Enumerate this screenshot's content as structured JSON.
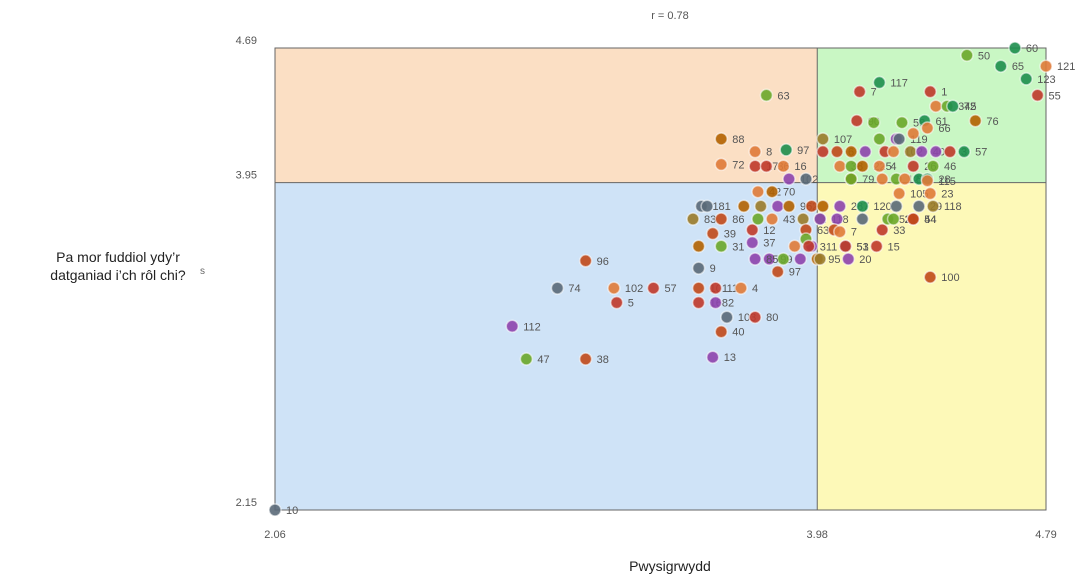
{
  "header": {
    "correlation": "r = 0.78"
  },
  "axes": {
    "ylabel_line1": "Pa mor fuddiol ydy’r",
    "ylabel_line2": "datganiad i’ch rôl chi?",
    "ylabel_unit": "s",
    "xlabel": "Pwysigrwydd"
  },
  "chart_data": {
    "type": "scatter",
    "xlim": [
      2.06,
      4.79
    ],
    "ylim": [
      2.15,
      4.69
    ],
    "x_ticks": [
      "2.06",
      "3.98",
      "4.79"
    ],
    "y_ticks": [
      "2.15",
      "3.95",
      "4.69"
    ],
    "threshold_x": 3.98,
    "threshold_y": 3.95,
    "quadrant_colors": {
      "top_left": "#fbdfc4",
      "top_right": "#c9f7c4",
      "bottom_left": "#cfe3f7",
      "bottom_right": "#fdf9b8"
    },
    "point_colors": [
      "#c0392b",
      "#1e8f4e",
      "#6ba82a",
      "#e07b39",
      "#b36200",
      "#8e44ad",
      "#5a6a78",
      "#c14a1a",
      "#9a7b2a"
    ],
    "points": [
      {
        "label": "10",
        "x": 2.06,
        "y": 2.15,
        "c": 6
      },
      {
        "label": "47",
        "x": 2.95,
        "y": 2.98,
        "c": 2
      },
      {
        "label": "38",
        "x": 3.16,
        "y": 2.98,
        "c": 7
      },
      {
        "label": "112",
        "x": 2.9,
        "y": 3.16,
        "c": 5
      },
      {
        "label": "74",
        "x": 3.06,
        "y": 3.37,
        "c": 6
      },
      {
        "label": "102",
        "x": 3.26,
        "y": 3.37,
        "c": 3
      },
      {
        "label": "57",
        "x": 3.4,
        "y": 3.37,
        "c": 0
      },
      {
        "label": "5",
        "x": 3.27,
        "y": 3.29,
        "c": 0
      },
      {
        "label": "96",
        "x": 3.16,
        "y": 3.52,
        "c": 7
      },
      {
        "label": "101",
        "x": 3.56,
        "y": 3.37,
        "c": 7
      },
      {
        "label": "11",
        "x": 3.62,
        "y": 3.37,
        "c": 0
      },
      {
        "label": "4",
        "x": 3.71,
        "y": 3.37,
        "c": 3
      },
      {
        "label": "1682",
        "x": 3.56,
        "y": 3.29,
        "c": 0
      },
      {
        "label": "",
        "x": 3.62,
        "y": 3.29,
        "c": 5
      },
      {
        "label": "103",
        "x": 3.66,
        "y": 3.21,
        "c": 6
      },
      {
        "label": "80",
        "x": 3.76,
        "y": 3.21,
        "c": 0
      },
      {
        "label": "40",
        "x": 3.64,
        "y": 3.13,
        "c": 7
      },
      {
        "label": "13",
        "x": 3.61,
        "y": 2.99,
        "c": 5
      },
      {
        "label": "9",
        "x": 3.56,
        "y": 3.48,
        "c": 6
      },
      {
        "label": "99",
        "x": 3.81,
        "y": 3.53,
        "c": 5
      },
      {
        "label": "",
        "x": 3.86,
        "y": 3.53,
        "c": 2
      },
      {
        "label": "85",
        "x": 3.76,
        "y": 3.53,
        "c": 5
      },
      {
        "label": "97",
        "x": 3.84,
        "y": 3.46,
        "c": 7
      },
      {
        "label": "",
        "x": 3.92,
        "y": 3.53,
        "c": 5
      },
      {
        "label": "95",
        "x": 3.98,
        "y": 3.53,
        "c": 4
      },
      {
        "label": "",
        "x": 3.99,
        "y": 3.53,
        "c": 8
      },
      {
        "label": "20",
        "x": 4.09,
        "y": 3.53,
        "c": 5
      },
      {
        "label": "37",
        "x": 3.75,
        "y": 3.62,
        "c": 5
      },
      {
        "label": "31",
        "x": 3.64,
        "y": 3.6,
        "c": 2
      },
      {
        "label": "",
        "x": 3.56,
        "y": 3.6,
        "c": 4
      },
      {
        "label": "39",
        "x": 3.61,
        "y": 3.67,
        "c": 7
      },
      {
        "label": "12",
        "x": 3.75,
        "y": 3.69,
        "c": 0
      },
      {
        "label": "83",
        "x": 3.54,
        "y": 3.75,
        "c": 8
      },
      {
        "label": "86",
        "x": 3.64,
        "y": 3.75,
        "c": 7
      },
      {
        "label": "",
        "x": 3.77,
        "y": 3.75,
        "c": 2
      },
      {
        "label": "43",
        "x": 3.82,
        "y": 3.75,
        "c": 3
      },
      {
        "label": "",
        "x": 3.9,
        "y": 3.6,
        "c": 3
      },
      {
        "label": "",
        "x": 3.96,
        "y": 3.6,
        "c": 5
      },
      {
        "label": "71",
        "x": 3.93,
        "y": 3.75,
        "c": 8
      },
      {
        "label": "",
        "x": 3.99,
        "y": 3.75,
        "c": 2
      },
      {
        "label": "118",
        "x": 3.99,
        "y": 3.75,
        "c": 5
      },
      {
        "label": "",
        "x": 4.05,
        "y": 3.75,
        "c": 5
      },
      {
        "label": "63",
        "x": 3.94,
        "y": 3.69,
        "c": 7
      },
      {
        "label": "",
        "x": 3.94,
        "y": 3.64,
        "c": 2
      },
      {
        "label": "311",
        "x": 3.95,
        "y": 3.6,
        "c": 0
      },
      {
        "label": "",
        "x": 4.04,
        "y": 3.69,
        "c": 7
      },
      {
        "label": "7",
        "x": 4.06,
        "y": 3.68,
        "c": 3
      },
      {
        "label": "53",
        "x": 4.08,
        "y": 3.6,
        "c": 6
      },
      {
        "label": "51",
        "x": 4.08,
        "y": 3.6,
        "c": 0
      },
      {
        "label": "15",
        "x": 4.19,
        "y": 3.6,
        "c": 0
      },
      {
        "label": "33",
        "x": 4.21,
        "y": 3.69,
        "c": 0
      },
      {
        "label": "",
        "x": 4.14,
        "y": 3.75,
        "c": 6
      },
      {
        "label": "52",
        "x": 4.23,
        "y": 3.75,
        "c": 2
      },
      {
        "label": "21",
        "x": 4.25,
        "y": 3.75,
        "c": 2
      },
      {
        "label": "44",
        "x": 4.32,
        "y": 3.75,
        "c": 0
      },
      {
        "label": "54",
        "x": 4.32,
        "y": 3.75,
        "c": 7
      },
      {
        "label": "181",
        "x": 3.57,
        "y": 3.82,
        "c": 6
      },
      {
        "label": "",
        "x": 3.59,
        "y": 3.82,
        "c": 6
      },
      {
        "label": "",
        "x": 3.72,
        "y": 3.82,
        "c": 4
      },
      {
        "label": "",
        "x": 3.78,
        "y": 3.82,
        "c": 8
      },
      {
        "label": "",
        "x": 3.84,
        "y": 3.82,
        "c": 5
      },
      {
        "label": "962",
        "x": 3.88,
        "y": 3.82,
        "c": 4
      },
      {
        "label": "",
        "x": 3.96,
        "y": 3.82,
        "c": 7
      },
      {
        "label": "",
        "x": 4.0,
        "y": 3.82,
        "c": 4
      },
      {
        "label": "287",
        "x": 4.06,
        "y": 3.82,
        "c": 5
      },
      {
        "label": "120",
        "x": 4.14,
        "y": 3.82,
        "c": 1
      },
      {
        "label": "",
        "x": 4.26,
        "y": 3.82,
        "c": 6
      },
      {
        "label": "29",
        "x": 4.34,
        "y": 3.82,
        "c": 6
      },
      {
        "label": "118",
        "x": 4.39,
        "y": 3.82,
        "c": 8
      },
      {
        "label": "42",
        "x": 3.77,
        "y": 3.9,
        "c": 3
      },
      {
        "label": "70",
        "x": 3.82,
        "y": 3.9,
        "c": 4
      },
      {
        "label": "105",
        "x": 4.27,
        "y": 3.89,
        "c": 3
      },
      {
        "label": "23",
        "x": 4.38,
        "y": 3.89,
        "c": 3
      },
      {
        "label": "102",
        "x": 3.88,
        "y": 3.97,
        "c": 5
      },
      {
        "label": "",
        "x": 3.94,
        "y": 3.97,
        "c": 6
      },
      {
        "label": "79",
        "x": 4.1,
        "y": 3.97,
        "c": 4
      },
      {
        "label": "",
        "x": 4.1,
        "y": 3.97,
        "c": 2
      },
      {
        "label": "",
        "x": 4.21,
        "y": 3.97,
        "c": 3
      },
      {
        "label": "122",
        "x": 4.26,
        "y": 3.97,
        "c": 2
      },
      {
        "label": "64",
        "x": 4.29,
        "y": 3.97,
        "c": 3
      },
      {
        "label": "",
        "x": 4.34,
        "y": 3.97,
        "c": 1
      },
      {
        "label": "28",
        "x": 4.37,
        "y": 3.97,
        "c": 1
      },
      {
        "label": "115",
        "x": 4.37,
        "y": 3.96,
        "c": 3
      },
      {
        "label": "72",
        "x": 3.64,
        "y": 4.05,
        "c": 3
      },
      {
        "label": "17",
        "x": 3.76,
        "y": 4.04,
        "c": 0
      },
      {
        "label": "36",
        "x": 3.8,
        "y": 4.04,
        "c": 0
      },
      {
        "label": "16",
        "x": 3.86,
        "y": 4.04,
        "c": 3
      },
      {
        "label": "88",
        "x": 3.64,
        "y": 4.19,
        "c": 4
      },
      {
        "label": "8",
        "x": 3.76,
        "y": 4.12,
        "c": 3
      },
      {
        "label": "97",
        "x": 3.87,
        "y": 4.13,
        "c": 1
      },
      {
        "label": "63",
        "x": 3.8,
        "y": 4.43,
        "c": 2
      },
      {
        "label": "107",
        "x": 4.0,
        "y": 4.19,
        "c": 8
      },
      {
        "label": "",
        "x": 4.0,
        "y": 4.12,
        "c": 0
      },
      {
        "label": "6",
        "x": 4.05,
        "y": 4.12,
        "c": 7
      },
      {
        "label": "",
        "x": 4.1,
        "y": 4.12,
        "c": 4
      },
      {
        "label": "",
        "x": 4.15,
        "y": 4.12,
        "c": 5
      },
      {
        "label": "89",
        "x": 4.2,
        "y": 4.19,
        "c": 2
      },
      {
        "label": "",
        "x": 4.22,
        "y": 4.12,
        "c": 0
      },
      {
        "label": "102",
        "x": 4.25,
        "y": 4.12,
        "c": 3
      },
      {
        "label": "",
        "x": 4.26,
        "y": 4.19,
        "c": 5
      },
      {
        "label": "119",
        "x": 4.27,
        "y": 4.19,
        "c": 6
      },
      {
        "label": "",
        "x": 4.31,
        "y": 4.12,
        "c": 8
      },
      {
        "label": "40",
        "x": 4.35,
        "y": 4.12,
        "c": 5
      },
      {
        "label": "",
        "x": 4.4,
        "y": 4.12,
        "c": 5
      },
      {
        "label": "3",
        "x": 4.45,
        "y": 4.12,
        "c": 0
      },
      {
        "label": "57",
        "x": 4.5,
        "y": 4.12,
        "c": 1
      },
      {
        "label": "38",
        "x": 4.06,
        "y": 4.04,
        "c": 3
      },
      {
        "label": "",
        "x": 4.1,
        "y": 4.04,
        "c": 2
      },
      {
        "label": "225",
        "x": 4.14,
        "y": 4.04,
        "c": 4
      },
      {
        "label": "4",
        "x": 4.2,
        "y": 4.04,
        "c": 3
      },
      {
        "label": "26",
        "x": 4.32,
        "y": 4.04,
        "c": 0
      },
      {
        "label": "46",
        "x": 4.39,
        "y": 4.04,
        "c": 2
      },
      {
        "label": "90",
        "x": 4.12,
        "y": 4.29,
        "c": 0
      },
      {
        "label": "",
        "x": 4.18,
        "y": 4.28,
        "c": 2
      },
      {
        "label": "58",
        "x": 4.28,
        "y": 4.28,
        "c": 2
      },
      {
        "label": "61",
        "x": 4.36,
        "y": 4.29,
        "c": 1
      },
      {
        "label": "66",
        "x": 4.37,
        "y": 4.25,
        "c": 3
      },
      {
        "label": "",
        "x": 4.32,
        "y": 4.22,
        "c": 3
      },
      {
        "label": "1",
        "x": 4.38,
        "y": 4.45,
        "c": 0
      },
      {
        "label": "",
        "x": 4.4,
        "y": 4.37,
        "c": 3
      },
      {
        "label": "345",
        "x": 4.44,
        "y": 4.37,
        "c": 2
      },
      {
        "label": "72",
        "x": 4.46,
        "y": 4.37,
        "c": 1
      },
      {
        "label": "76",
        "x": 4.54,
        "y": 4.29,
        "c": 4
      },
      {
        "label": "7",
        "x": 4.13,
        "y": 4.45,
        "c": 0
      },
      {
        "label": "117",
        "x": 4.2,
        "y": 4.5,
        "c": 1
      },
      {
        "label": "50",
        "x": 4.51,
        "y": 4.65,
        "c": 2
      },
      {
        "label": "65",
        "x": 4.63,
        "y": 4.59,
        "c": 1
      },
      {
        "label": "60",
        "x": 4.68,
        "y": 4.69,
        "c": 1
      },
      {
        "label": "121",
        "x": 4.79,
        "y": 4.59,
        "c": 3
      },
      {
        "label": "123",
        "x": 4.72,
        "y": 4.52,
        "c": 1
      },
      {
        "label": "55",
        "x": 4.76,
        "y": 4.43,
        "c": 0
      },
      {
        "label": "100",
        "x": 4.38,
        "y": 3.43,
        "c": 7
      }
    ]
  }
}
